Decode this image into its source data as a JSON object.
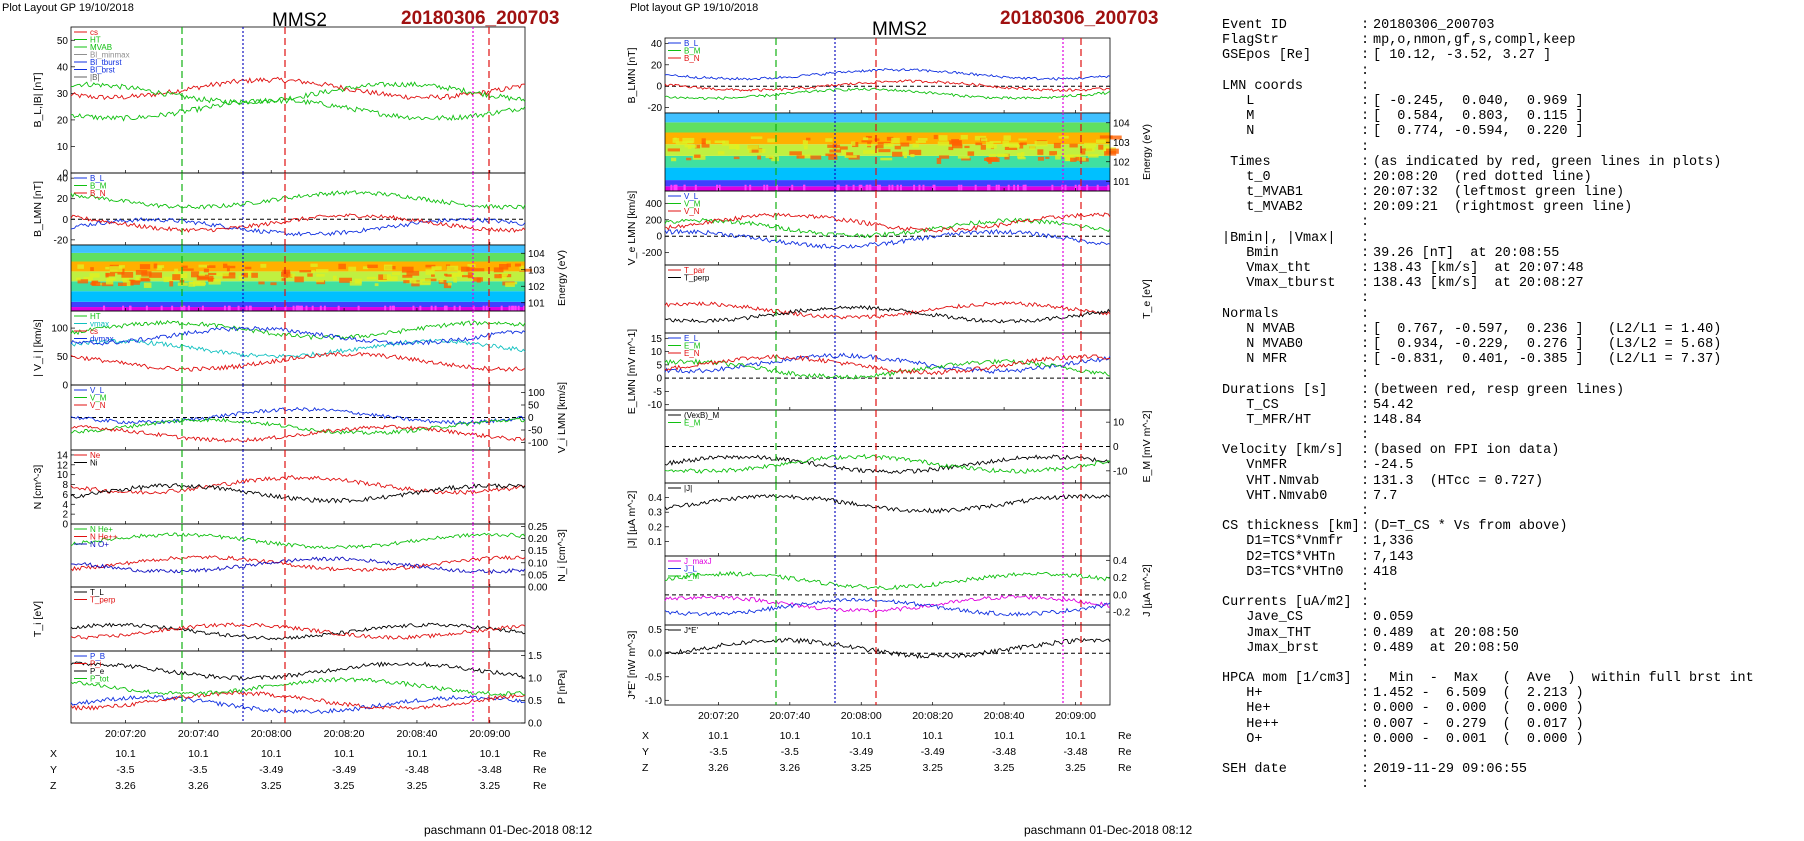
{
  "page": {
    "left": {
      "header": "Plot Layout GP 19/10/2018",
      "title": "MMS2",
      "event": "20180306_200703",
      "footer": "paschmann 01-Dec-2018 08:12"
    },
    "right": {
      "header": "Plot layout GP 19/10/2018",
      "title": "MMS2",
      "event": "20180306_200703",
      "footer": "paschmann 01-Dec-2018 08:12"
    }
  },
  "colors": {
    "event": "#a01010",
    "L": "#1030e0",
    "M": "#10c010",
    "N": "#e01010",
    "black": "#000000",
    "magenta": "#e000e0",
    "green": "#10b010",
    "red": "#e01010",
    "blue": "#1010c0"
  },
  "chart_data": [
    {
      "type": "line",
      "column": "left",
      "xticks": [
        "20:07:20",
        "20:07:40",
        "20:08:00",
        "20:08:20",
        "20:08:40",
        "20:09:00"
      ],
      "coords": {
        "labels": [
          "X",
          "Y",
          "Z"
        ],
        "unit": "Re",
        "rows": [
          [
            "10.1",
            "10.1",
            "10.1",
            "10.1",
            "10.1",
            "10.1"
          ],
          [
            "-3.5",
            "-3.5",
            "-3.49",
            "-3.49",
            "-3.48",
            "-3.48"
          ],
          [
            "3.26",
            "3.26",
            "3.25",
            "3.25",
            "3.25",
            "3.25"
          ]
        ]
      },
      "panels": [
        {
          "ylabel": "B_L,|B| [nT]",
          "ylim": [
            0,
            55
          ],
          "yticks": [
            "0",
            "10",
            "20",
            "30",
            "40",
            "50"
          ],
          "legend": [
            "cs",
            "HT",
            "MVAB",
            "Bl_minmax",
            "Bl_tburst",
            "Bl_brst",
            "|B|"
          ],
          "colors": [
            "#e01010",
            "#10c010",
            "#10c010",
            "#909090",
            "#1030e0",
            "#1030e0",
            "#606060"
          ]
        },
        {
          "ylabel": "B_LMN [nT]",
          "ylim": [
            -25,
            45
          ],
          "yticks": [
            "-20",
            "0",
            "20",
            "40"
          ],
          "legend": [
            "B_L",
            "B_M",
            "B_N"
          ],
          "colors": [
            "#1030e0",
            "#10c010",
            "#e01010"
          ]
        },
        {
          "ylabel": "Energy (eV)",
          "ylim": [
            1,
            4
          ],
          "yticks": [
            "10^1",
            "10^2",
            "10^3",
            "10^4"
          ],
          "legend": [],
          "colors": []
        },
        {
          "ylabel": "| V_i | [km/s]",
          "ylim": [
            0,
            130
          ],
          "yticks": [
            "0",
            "50",
            "100"
          ],
          "legend": [
            "HT",
            "vmax",
            "cs",
            "dvmax"
          ],
          "colors": [
            "#10c010",
            "#10c0c0",
            "#e01010",
            "#1030e0"
          ]
        },
        {
          "ylabel": "V_i LMN [km/s]",
          "ylim": [
            -130,
            130
          ],
          "yticks": [
            "-100",
            "-50",
            "0",
            "50",
            "100"
          ],
          "legend": [
            "V_L",
            "V_M",
            "V_N"
          ],
          "colors": [
            "#1030e0",
            "#10c010",
            "#e01010"
          ]
        },
        {
          "ylabel": "N [cm^-3]",
          "ylim": [
            0,
            15
          ],
          "yticks": [
            "0",
            "2",
            "4",
            "6",
            "8",
            "10",
            "12",
            "14"
          ],
          "legend": [
            "Ne",
            "Ni"
          ],
          "colors": [
            "#e01010",
            "#000000"
          ]
        },
        {
          "ylabel": "N_i [cm^-3]",
          "ylim": [
            0,
            0.26
          ],
          "yticks": [
            "0.00",
            "0.05",
            "0.10",
            "0.15",
            "0.20",
            "0.25"
          ],
          "legend": [
            "N He+",
            "N He++",
            "N O+"
          ],
          "colors": [
            "#10c010",
            "#e01010",
            "#1010c0"
          ]
        },
        {
          "ylabel": "T_i [eV]",
          "ylim": [
            0,
            1
          ],
          "yticks": [],
          "legend": [
            "T_L",
            "T_perp"
          ],
          "colors": [
            "#000000",
            "#e01010"
          ]
        },
        {
          "ylabel": "P [nPa]",
          "ylim": [
            0,
            1.6
          ],
          "yticks": [
            "0.0",
            "0.5",
            "1.0",
            "1.5"
          ],
          "legend": [
            "P_B",
            "P_i",
            "P_e",
            "P_tot"
          ],
          "colors": [
            "#1030e0",
            "#e01010",
            "#000000",
            "#10c010"
          ]
        }
      ]
    },
    {
      "type": "line",
      "column": "right",
      "xticks": [
        "20:07:20",
        "20:07:40",
        "20:08:00",
        "20:08:20",
        "20:08:40",
        "20:09:00"
      ],
      "coords": {
        "labels": [
          "X",
          "Y",
          "Z"
        ],
        "unit": "Re",
        "rows": [
          [
            "10.1",
            "10.1",
            "10.1",
            "10.1",
            "10.1",
            "10.1"
          ],
          [
            "-3.5",
            "-3.5",
            "-3.49",
            "-3.49",
            "-3.48",
            "-3.48"
          ],
          [
            "3.26",
            "3.26",
            "3.25",
            "3.25",
            "3.25",
            "3.25"
          ]
        ]
      },
      "panels": [
        {
          "ylabel": "B_LMN [nT]",
          "ylim": [
            -25,
            45
          ],
          "yticks": [
            "-20",
            "0",
            "20",
            "40"
          ],
          "legend": [
            "B_L",
            "B_M",
            "B_N"
          ],
          "colors": [
            "#1030e0",
            "#10c010",
            "#e01010"
          ]
        },
        {
          "ylabel": "Energy (eV)",
          "ylim": [
            1,
            4
          ],
          "yticks": [
            "10^1",
            "10^2",
            "10^3",
            "10^4"
          ],
          "legend": [],
          "colors": []
        },
        {
          "ylabel": "V_e LMN [km/s]",
          "ylim": [
            -350,
            550
          ],
          "yticks": [
            "-200",
            "0",
            "200",
            "400"
          ],
          "legend": [
            "V_L",
            "V_M",
            "V_N"
          ],
          "colors": [
            "#1030e0",
            "#10c010",
            "#e01010"
          ]
        },
        {
          "ylabel": "T_e [eV]",
          "ylim": [
            0,
            1
          ],
          "yticks": [],
          "legend": [
            "T_par",
            "T_perp"
          ],
          "colors": [
            "#e01010",
            "#000000"
          ]
        },
        {
          "ylabel": "E_LMN [mV m^-1]",
          "ylim": [
            -12,
            17
          ],
          "yticks": [
            "-10",
            "-5",
            "0",
            "5",
            "10",
            "15"
          ],
          "legend": [
            "E_L",
            "E_M",
            "E_N"
          ],
          "colors": [
            "#1030e0",
            "#10c010",
            "#e01010"
          ]
        },
        {
          "ylabel": "E_M [mV m^-2]",
          "ylim": [
            -15,
            15
          ],
          "yticks": [
            "-10",
            "0",
            "10"
          ],
          "legend": [
            "(VexB)_M",
            "E_M"
          ],
          "colors": [
            "#000000",
            "#10c010"
          ]
        },
        {
          "ylabel": "|J| [µA m^-2]",
          "ylim": [
            0,
            0.5
          ],
          "yticks": [
            "0.1",
            "0.2",
            "0.3",
            "0.4"
          ],
          "legend": [
            "|J|"
          ],
          "colors": [
            "#000000"
          ]
        },
        {
          "ylabel": "J [µA m^-2]",
          "ylim": [
            -0.35,
            0.45
          ],
          "yticks": [
            "-0.2",
            "0.0",
            "0.2",
            "0.4"
          ],
          "legend": [
            "J_maxJ",
            "J_L",
            "J_M"
          ],
          "colors": [
            "#e000e0",
            "#1030e0",
            "#10c010"
          ]
        },
        {
          "ylabel": "J*E' [nW m^-3]",
          "ylim": [
            -1.1,
            0.6
          ],
          "yticks": [
            "-1.0",
            "-0.5",
            "0.0",
            "0.5"
          ],
          "legend": [
            "J*E'"
          ],
          "colors": [
            "#000000"
          ]
        }
      ]
    }
  ],
  "info": [
    {
      "k": "Event ID",
      "v": "20180306_200703"
    },
    {
      "k": "FlagStr",
      "v": "mp,o,nmon,gf,s,compl,keep"
    },
    {
      "k": "GSEpos [Re]",
      "v": "[ 10.12, -3.52, 3.27 ]"
    },
    {
      "k": "",
      "v": ""
    },
    {
      "k": "LMN coords",
      "v": ""
    },
    {
      "k": "   L",
      "v": "[ -0.245,  0.040,  0.969 ]"
    },
    {
      "k": "   M",
      "v": "[  0.584,  0.803,  0.115 ]"
    },
    {
      "k": "   N",
      "v": "[  0.774, -0.594,  0.220 ]"
    },
    {
      "k": "",
      "v": ""
    },
    {
      "k": " Times",
      "v": "(as indicated by red, green lines in plots)"
    },
    {
      "k": "   t_0",
      "v": "20:08:20  (red dotted line)"
    },
    {
      "k": "   t_MVAB1",
      "v": "20:07:32  (leftmost green line)"
    },
    {
      "k": "   t_MVAB2",
      "v": "20:09:21  (rightmost green line)"
    },
    {
      "k": "",
      "v": ""
    },
    {
      "k": "|Bmin|, |Vmax|",
      "v": ""
    },
    {
      "k": "   Bmin",
      "v": "39.26 [nT]  at 20:08:55"
    },
    {
      "k": "   Vmax_tht",
      "v": "138.43 [km/s]  at 20:07:48"
    },
    {
      "k": "   Vmax_tburst",
      "v": "138.43 [km/s]  at 20:08:27"
    },
    {
      "k": "",
      "v": ""
    },
    {
      "k": "Normals",
      "v": ""
    },
    {
      "k": "   N MVAB",
      "v": "[  0.767, -0.597,  0.236 ]   (L2/L1 = 1.40)"
    },
    {
      "k": "   N MVAB0",
      "v": "[  0.934, -0.229,  0.276 ]   (L3/L2 = 5.68)"
    },
    {
      "k": "   N MFR",
      "v": "[ -0.831,  0.401, -0.385 ]   (L2/L1 = 7.37)"
    },
    {
      "k": "",
      "v": ""
    },
    {
      "k": "Durations [s]",
      "v": "(between red, resp green lines)"
    },
    {
      "k": "   T_CS",
      "v": "54.42"
    },
    {
      "k": "   T_MFR/HT",
      "v": "148.84"
    },
    {
      "k": "",
      "v": ""
    },
    {
      "k": "Velocity [km/s]",
      "v": "(based on FPI ion data)"
    },
    {
      "k": "   VnMFR",
      "v": "-24.5"
    },
    {
      "k": "   VHT.Nmvab",
      "v": "131.3  (HTcc = 0.727)"
    },
    {
      "k": "   VHT.Nmvab0",
      "v": "7.7"
    },
    {
      "k": "",
      "v": ""
    },
    {
      "k": "CS thickness [km]",
      "v": "(D=T_CS * Vs from above)"
    },
    {
      "k": "   D1=TCS*Vnmfr",
      "v": "1,336"
    },
    {
      "k": "   D2=TCS*VHTn",
      "v": "7,143"
    },
    {
      "k": "   D3=TCS*VHTn0",
      "v": "418"
    },
    {
      "k": "",
      "v": ""
    },
    {
      "k": "Currents [uA/m2]",
      "v": ""
    },
    {
      "k": "   Jave_CS",
      "v": "0.059"
    },
    {
      "k": "   Jmax_THT",
      "v": "0.489  at 20:08:50"
    },
    {
      "k": "   Jmax_brst",
      "v": "0.489  at 20:08:50"
    },
    {
      "k": "",
      "v": ""
    },
    {
      "k": "HPCA mom [1/cm3]",
      "v": "  Min  -  Max   (  Ave  )  within full brst int"
    },
    {
      "k": "   H+",
      "v": "1.452 -  6.509  (  2.213 )"
    },
    {
      "k": "   He+",
      "v": "0.000 -  0.000  (  0.000 )"
    },
    {
      "k": "   He++",
      "v": "0.007 -  0.279  (  0.017 )"
    },
    {
      "k": "   O+",
      "v": "0.000 -  0.001  (  0.000 )"
    },
    {
      "k": "",
      "v": ""
    },
    {
      "k": "SEH date",
      "v": "2019-11-29 09:06:55"
    },
    {
      "k": "",
      "v": ""
    }
  ]
}
